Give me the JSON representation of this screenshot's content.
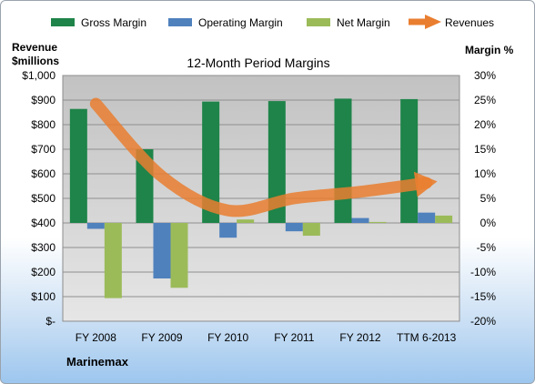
{
  "chart_data": {
    "type": "bar",
    "title": "12-Month Period Margins",
    "company": "Marinemax",
    "categories": [
      "FY 2008",
      "FY 2009",
      "FY 2010",
      "FY 2011",
      "FY 2012",
      "TTM 6-2013"
    ],
    "left_axis": {
      "label_line1": "Revenue",
      "label_line2": "$millions",
      "ylim": [
        0,
        1000
      ],
      "ticks": [
        0,
        100,
        200,
        300,
        400,
        500,
        600,
        700,
        800,
        900,
        1000
      ],
      "tick_labels": [
        "$-",
        "$100",
        "$200",
        "$300",
        "$400",
        "$500",
        "$600",
        "$700",
        "$800",
        "$900",
        "$1,000"
      ]
    },
    "right_axis": {
      "label": "Margin %",
      "ylim": [
        -20,
        30
      ],
      "ticks": [
        -20,
        -15,
        -10,
        -5,
        0,
        5,
        10,
        15,
        20,
        25,
        30
      ],
      "tick_labels": [
        "-20%",
        "-15%",
        "-10%",
        "-5%",
        "0%",
        "5%",
        "10%",
        "15%",
        "20%",
        "25%",
        "30%"
      ]
    },
    "series": [
      {
        "name": "Gross Margin",
        "color": "#1e8449",
        "axis": "right",
        "values": [
          23.2,
          15,
          24.7,
          24.8,
          25.3,
          25.2
        ]
      },
      {
        "name": "Operating Margin",
        "color": "#4f81bd",
        "axis": "right",
        "values": [
          -1.2,
          -11.3,
          -3,
          -1.7,
          1,
          2.1
        ]
      },
      {
        "name": "Net Margin",
        "color": "#9bbb59",
        "axis": "right",
        "values": [
          -15.3,
          -13.2,
          0.7,
          -2.6,
          0.2,
          1.5
        ]
      },
      {
        "name": "Revenues",
        "color": "#e97e30",
        "axis": "left",
        "type": "arrow-line",
        "values": [
          885,
          589,
          451,
          500,
          527,
          563
        ]
      }
    ],
    "grid": true,
    "legend": "top"
  }
}
